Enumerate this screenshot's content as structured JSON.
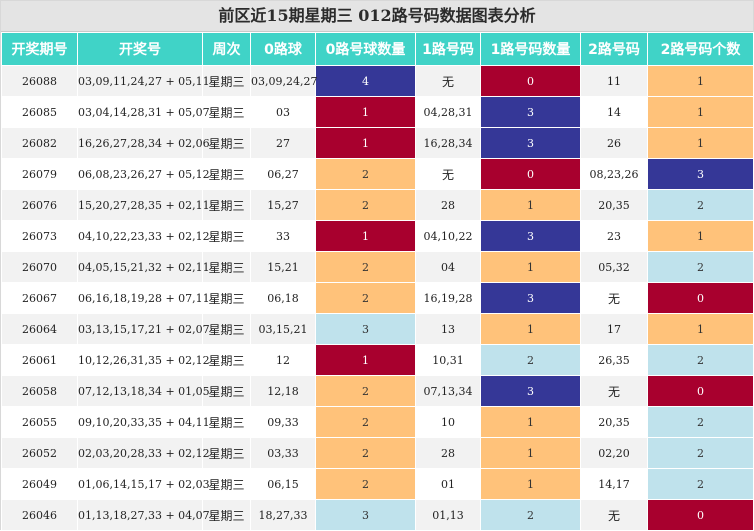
{
  "title": "前区近15期星期三 012路号码数据图表分析",
  "headers": [
    "开奖期号",
    "开奖号",
    "周次",
    "0路球",
    "0路号球数量",
    "1路号码",
    "1路号码数量",
    "2路号码",
    "2路号码个数"
  ],
  "colors": {
    "header_bg": "#40d3c7",
    "count_0": "#a8002e",
    "count_1": "#ffc27a",
    "count_2": "#ffc27a",
    "count_3": "#bfe2ec",
    "count_4": "#353797",
    "count_3_in_1route": "#353797",
    "count_2_in_1route": "#bfe2ec",
    "count_1_in_0route": "#a8002e",
    "count_3_in_2route": "#353797"
  },
  "rows": [
    {
      "issue": "26088",
      "numbers": "03,09,11,24,27 + 05,11",
      "weekday": "星期三",
      "r0": "03,09,24,27",
      "c0": "4",
      "r1": "无",
      "c1": "0",
      "r2": "11",
      "c2": "1",
      "k0": "blue",
      "k1": "red",
      "k2": "orange"
    },
    {
      "issue": "26085",
      "numbers": "03,04,14,28,31 + 05,07",
      "weekday": "星期三",
      "r0": "03",
      "c0": "1",
      "r1": "04,28,31",
      "c1": "3",
      "r2": "14",
      "c2": "1",
      "k0": "red",
      "k1": "blue",
      "k2": "orange"
    },
    {
      "issue": "26082",
      "numbers": "16,26,27,28,34 + 02,06",
      "weekday": "星期三",
      "r0": "27",
      "c0": "1",
      "r1": "16,28,34",
      "c1": "3",
      "r2": "26",
      "c2": "1",
      "k0": "red",
      "k1": "blue",
      "k2": "orange"
    },
    {
      "issue": "26079",
      "numbers": "06,08,23,26,27 + 05,12",
      "weekday": "星期三",
      "r0": "06,27",
      "c0": "2",
      "r1": "无",
      "c1": "0",
      "r2": "08,23,26",
      "c2": "3",
      "k0": "orange",
      "k1": "red",
      "k2": "blue"
    },
    {
      "issue": "26076",
      "numbers": "15,20,27,28,35 + 02,11",
      "weekday": "星期三",
      "r0": "15,27",
      "c0": "2",
      "r1": "28",
      "c1": "1",
      "r2": "20,35",
      "c2": "2",
      "k0": "orange",
      "k1": "orange",
      "k2": "light"
    },
    {
      "issue": "26073",
      "numbers": "04,10,22,23,33 + 02,12",
      "weekday": "星期三",
      "r0": "33",
      "c0": "1",
      "r1": "04,10,22",
      "c1": "3",
      "r2": "23",
      "c2": "1",
      "k0": "red",
      "k1": "blue",
      "k2": "orange"
    },
    {
      "issue": "26070",
      "numbers": "04,05,15,21,32 + 02,11",
      "weekday": "星期三",
      "r0": "15,21",
      "c0": "2",
      "r1": "04",
      "c1": "1",
      "r2": "05,32",
      "c2": "2",
      "k0": "orange",
      "k1": "orange",
      "k2": "light"
    },
    {
      "issue": "26067",
      "numbers": "06,16,18,19,28 + 07,11",
      "weekday": "星期三",
      "r0": "06,18",
      "c0": "2",
      "r1": "16,19,28",
      "c1": "3",
      "r2": "无",
      "c2": "0",
      "k0": "orange",
      "k1": "blue",
      "k2": "red"
    },
    {
      "issue": "26064",
      "numbers": "03,13,15,17,21 + 02,07",
      "weekday": "星期三",
      "r0": "03,15,21",
      "c0": "3",
      "r1": "13",
      "c1": "1",
      "r2": "17",
      "c2": "1",
      "k0": "light",
      "k1": "orange",
      "k2": "orange"
    },
    {
      "issue": "26061",
      "numbers": "10,12,26,31,35 + 02,12",
      "weekday": "星期三",
      "r0": "12",
      "c0": "1",
      "r1": "10,31",
      "c1": "2",
      "r2": "26,35",
      "c2": "2",
      "k0": "red",
      "k1": "light",
      "k2": "light"
    },
    {
      "issue": "26058",
      "numbers": "07,12,13,18,34 + 01,05",
      "weekday": "星期三",
      "r0": "12,18",
      "c0": "2",
      "r1": "07,13,34",
      "c1": "3",
      "r2": "无",
      "c2": "0",
      "k0": "orange",
      "k1": "blue",
      "k2": "red"
    },
    {
      "issue": "26055",
      "numbers": "09,10,20,33,35 + 04,11",
      "weekday": "星期三",
      "r0": "09,33",
      "c0": "2",
      "r1": "10",
      "c1": "1",
      "r2": "20,35",
      "c2": "2",
      "k0": "orange",
      "k1": "orange",
      "k2": "light"
    },
    {
      "issue": "26052",
      "numbers": "02,03,20,28,33 + 02,12",
      "weekday": "星期三",
      "r0": "03,33",
      "c0": "2",
      "r1": "28",
      "c1": "1",
      "r2": "02,20",
      "c2": "2",
      "k0": "orange",
      "k1": "orange",
      "k2": "light"
    },
    {
      "issue": "26049",
      "numbers": "01,06,14,15,17 + 02,03",
      "weekday": "星期三",
      "r0": "06,15",
      "c0": "2",
      "r1": "01",
      "c1": "1",
      "r2": "14,17",
      "c2": "2",
      "k0": "orange",
      "k1": "orange",
      "k2": "light"
    },
    {
      "issue": "26046",
      "numbers": "01,13,18,27,33 + 04,07",
      "weekday": "星期三",
      "r0": "18,27,33",
      "c0": "3",
      "r1": "01,13",
      "c1": "2",
      "r2": "无",
      "c2": "0",
      "k0": "light",
      "k1": "light",
      "k2": "red"
    }
  ]
}
